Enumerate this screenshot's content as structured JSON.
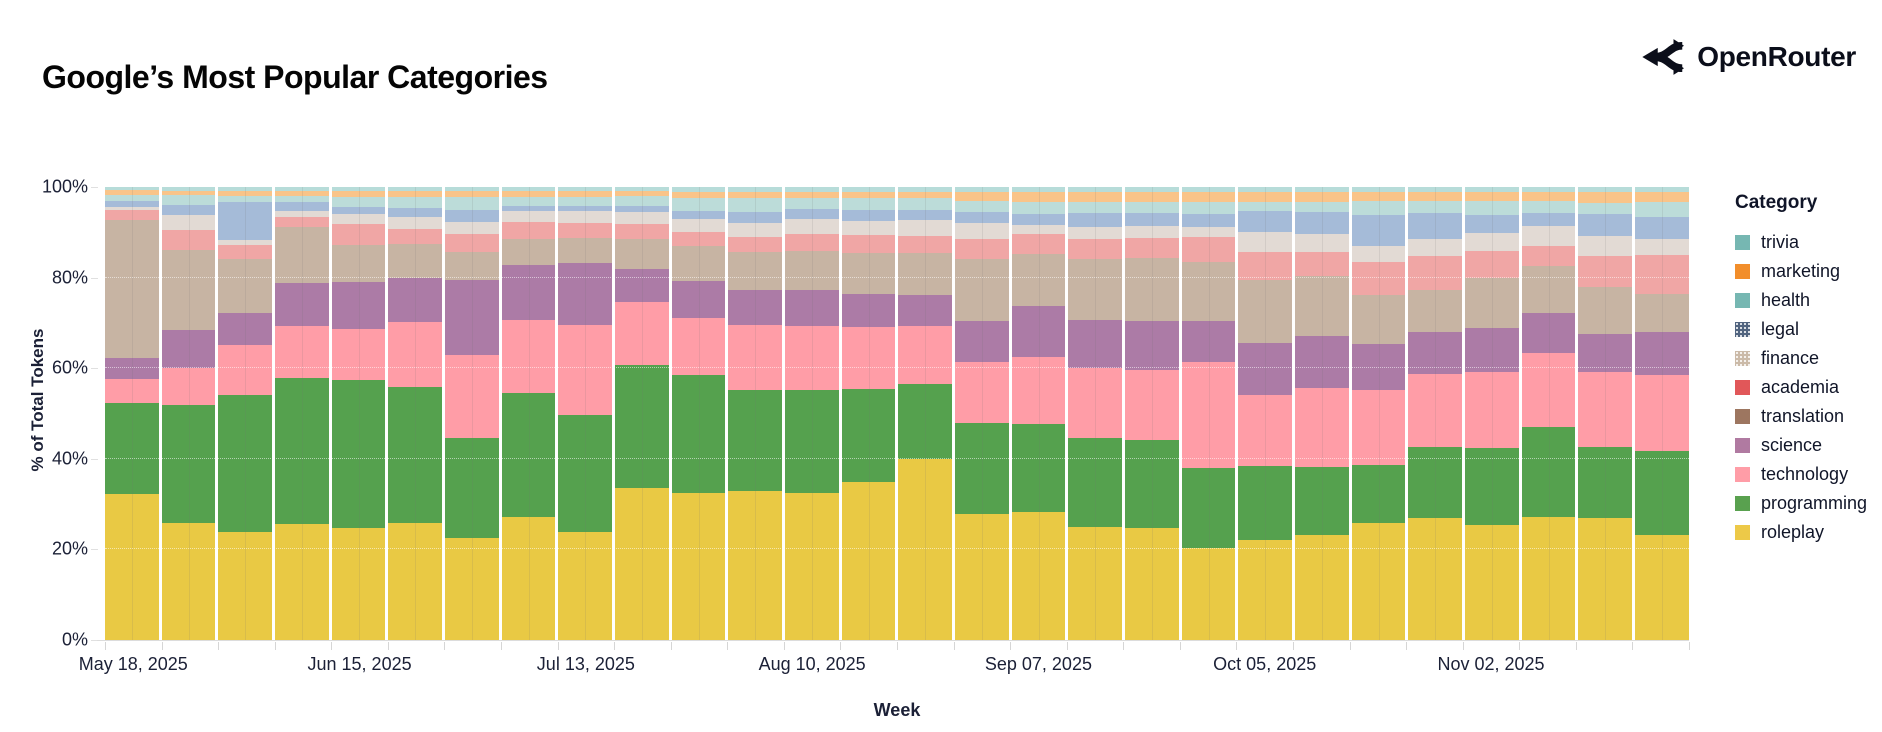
{
  "header": {
    "title": "Google’s Most Popular Categories",
    "brand": "OpenRouter"
  },
  "chart_data": {
    "type": "bar",
    "stacked": true,
    "title": "Google’s Most Popular Categories",
    "xlabel": "Week",
    "ylabel": "% of Total Tokens",
    "ylim": [
      0,
      100
    ],
    "grid": true,
    "legend_position": "right",
    "legend_title": "Category",
    "yticks": [
      {
        "value": 0,
        "label": "0%"
      },
      {
        "value": 20,
        "label": "20%"
      },
      {
        "value": 40,
        "label": "40%"
      },
      {
        "value": 60,
        "label": "60%"
      },
      {
        "value": 80,
        "label": "80%"
      },
      {
        "value": 100,
        "label": "100%"
      }
    ],
    "weeks": [
      "May 18, 2025",
      "May 25, 2025",
      "Jun 01, 2025",
      "Jun 08, 2025",
      "Jun 15, 2025",
      "Jun 22, 2025",
      "Jun 29, 2025",
      "Jul 06, 2025",
      "Jul 13, 2025",
      "Jul 20, 2025",
      "Jul 27, 2025",
      "Aug 03, 2025",
      "Aug 10, 2025",
      "Aug 17, 2025",
      "Aug 24, 2025",
      "Aug 31, 2025",
      "Sep 07, 2025",
      "Sep 14, 2025",
      "Sep 21, 2025",
      "Sep 28, 2025",
      "Oct 05, 2025",
      "Oct 12, 2025",
      "Oct 19, 2025",
      "Oct 26, 2025",
      "Nov 02, 2025",
      "Nov 09, 2025",
      "Nov 16, 2025",
      "Nov 23, 2025"
    ],
    "x_tick_labels": [
      {
        "index": 0,
        "label": "May 18, 2025"
      },
      {
        "index": 4,
        "label": "Jun 15, 2025"
      },
      {
        "index": 8,
        "label": "Jul 13, 2025"
      },
      {
        "index": 12,
        "label": "Aug 10, 2025"
      },
      {
        "index": 16,
        "label": "Sep 07, 2025"
      },
      {
        "index": 20,
        "label": "Oct 05, 2025"
      },
      {
        "index": 24,
        "label": "Nov 02, 2025"
      }
    ],
    "series": [
      {
        "name": "trivia",
        "legend_color": "#76b7b2",
        "bar_color": "#b7dcd9",
        "pattern": false,
        "values": [
          0.7,
          0.8,
          0.8,
          0.8,
          0.8,
          0.8,
          0.8,
          0.8,
          0.8,
          0.8,
          1.0,
          1.0,
          1.0,
          1.0,
          1.0,
          1.0,
          1.0,
          1.0,
          1.0,
          1.0,
          1.0,
          1.0,
          1.0,
          1.0,
          1.0,
          1.0,
          1.0,
          1.0
        ]
      },
      {
        "name": "marketing",
        "legend_color": "#f28e2b",
        "bar_color": "#f9c489",
        "pattern": false,
        "values": [
          1.1,
          1.0,
          1.1,
          1.2,
          1.4,
          1.4,
          1.4,
          1.4,
          1.4,
          1.3,
          1.5,
          1.5,
          1.5,
          1.5,
          1.5,
          2.0,
          2.3,
          2.3,
          2.3,
          2.3,
          2.3,
          2.3,
          2.2,
          2.2,
          2.2,
          2.2,
          2.5,
          2.4
        ]
      },
      {
        "name": "health",
        "legend_color": "#76b7b2",
        "bar_color": "#bcdcd9",
        "pattern": false,
        "values": [
          1.2,
          2.2,
          1.4,
          1.3,
          2.2,
          2.5,
          2.9,
          2.0,
          2.0,
          2.0,
          2.8,
          2.9,
          2.3,
          2.5,
          2.5,
          2.5,
          2.6,
          2.5,
          2.4,
          2.6,
          2.1,
          2.3,
          2.9,
          2.5,
          2.9,
          2.5,
          2.5,
          3.3
        ]
      },
      {
        "name": "legal",
        "legend_color": "#51647f",
        "bar_color": "#a5bbd8",
        "pattern": true,
        "values": [
          1.5,
          2.2,
          8.4,
          2.1,
          1.5,
          1.9,
          2.6,
          1.0,
          1.2,
          1.5,
          1.8,
          2.5,
          2.3,
          2.5,
          2.4,
          2.5,
          2.6,
          3.0,
          3.0,
          2.8,
          4.5,
          4.8,
          7.0,
          5.9,
          4.0,
          3.0,
          4.8,
          4.8
        ]
      },
      {
        "name": "finance",
        "legend_color": "#cbbaa8",
        "bar_color": "#e2dad4",
        "pattern": true,
        "values": [
          0.5,
          3.3,
          1.2,
          1.2,
          2.2,
          2.6,
          2.6,
          2.5,
          2.6,
          2.5,
          2.8,
          3.1,
          3.4,
          3.2,
          3.5,
          3.5,
          1.8,
          2.6,
          2.6,
          2.3,
          4.4,
          4.0,
          3.4,
          3.7,
          4.1,
          4.4,
          4.4,
          3.5
        ]
      },
      {
        "name": "academia",
        "legend_color": "#e15759",
        "bar_color": "#f0a6a5",
        "pattern": false,
        "values": [
          2.3,
          4.4,
          3.0,
          2.2,
          4.8,
          3.3,
          4.0,
          3.9,
          3.3,
          3.5,
          3.2,
          3.3,
          3.6,
          3.8,
          3.6,
          4.5,
          4.4,
          4.4,
          4.4,
          5.5,
          6.2,
          5.1,
          7.5,
          7.6,
          5.9,
          4.4,
          7.0,
          8.6
        ]
      },
      {
        "name": "translation",
        "legend_color": "#9d7660",
        "bar_color": "#c7b4a3",
        "pattern": false,
        "values": [
          30.5,
          17.7,
          12.0,
          12.5,
          8.1,
          7.7,
          6.3,
          5.6,
          5.5,
          6.5,
          7.5,
          8.3,
          8.8,
          9.2,
          9.5,
          13.5,
          11.5,
          13.6,
          14.0,
          12.9,
          14.0,
          13.3,
          10.7,
          9.2,
          11.1,
          10.3,
          10.3,
          8.5
        ]
      },
      {
        "name": "science",
        "legend_color": "#b07aa1",
        "bar_color": "#ac7ba6",
        "pattern": false,
        "values": [
          4.5,
          8.4,
          7.0,
          9.5,
          10.3,
          9.6,
          16.5,
          12.2,
          13.7,
          7.3,
          8.2,
          7.7,
          7.8,
          7.3,
          6.7,
          9.2,
          11.4,
          10.6,
          10.7,
          9.2,
          11.4,
          11.4,
          10.3,
          9.2,
          9.6,
          8.9,
          8.4,
          9.4
        ]
      },
      {
        "name": "technology",
        "legend_color": "#ff9da7",
        "bar_color": "#ff9da7",
        "pattern": false,
        "values": [
          5.5,
          8.1,
          11.0,
          11.4,
          11.4,
          14.3,
          18.4,
          16.2,
          19.8,
          14.0,
          12.6,
          14.3,
          14.3,
          13.6,
          12.8,
          13.5,
          14.7,
          15.5,
          15.5,
          23.2,
          15.8,
          17.3,
          16.6,
          16.2,
          16.9,
          16.5,
          16.6,
          16.9
        ]
      },
      {
        "name": "programming",
        "legend_color": "#59a14f",
        "bar_color": "#55a14e",
        "pattern": false,
        "values": [
          20.0,
          26.1,
          30.2,
          32.3,
          32.6,
          30.1,
          22.1,
          27.2,
          25.8,
          27.2,
          25.9,
          22.2,
          22.8,
          20.6,
          16.6,
          19.9,
          19.5,
          19.5,
          19.5,
          17.7,
          16.2,
          15.1,
          12.8,
          15.8,
          16.9,
          19.9,
          15.8,
          18.4
        ]
      },
      {
        "name": "roleplay",
        "legend_color": "#edc948",
        "bar_color": "#e9c944",
        "pattern": false,
        "values": [
          32.2,
          25.8,
          23.9,
          25.5,
          24.7,
          25.8,
          22.4,
          27.2,
          23.9,
          33.5,
          32.4,
          32.7,
          32.4,
          35.0,
          40.1,
          27.9,
          28.3,
          25.0,
          24.6,
          20.2,
          22.1,
          23.0,
          25.8,
          26.9,
          25.4,
          27.2,
          27.0,
          23.2
        ]
      }
    ]
  }
}
